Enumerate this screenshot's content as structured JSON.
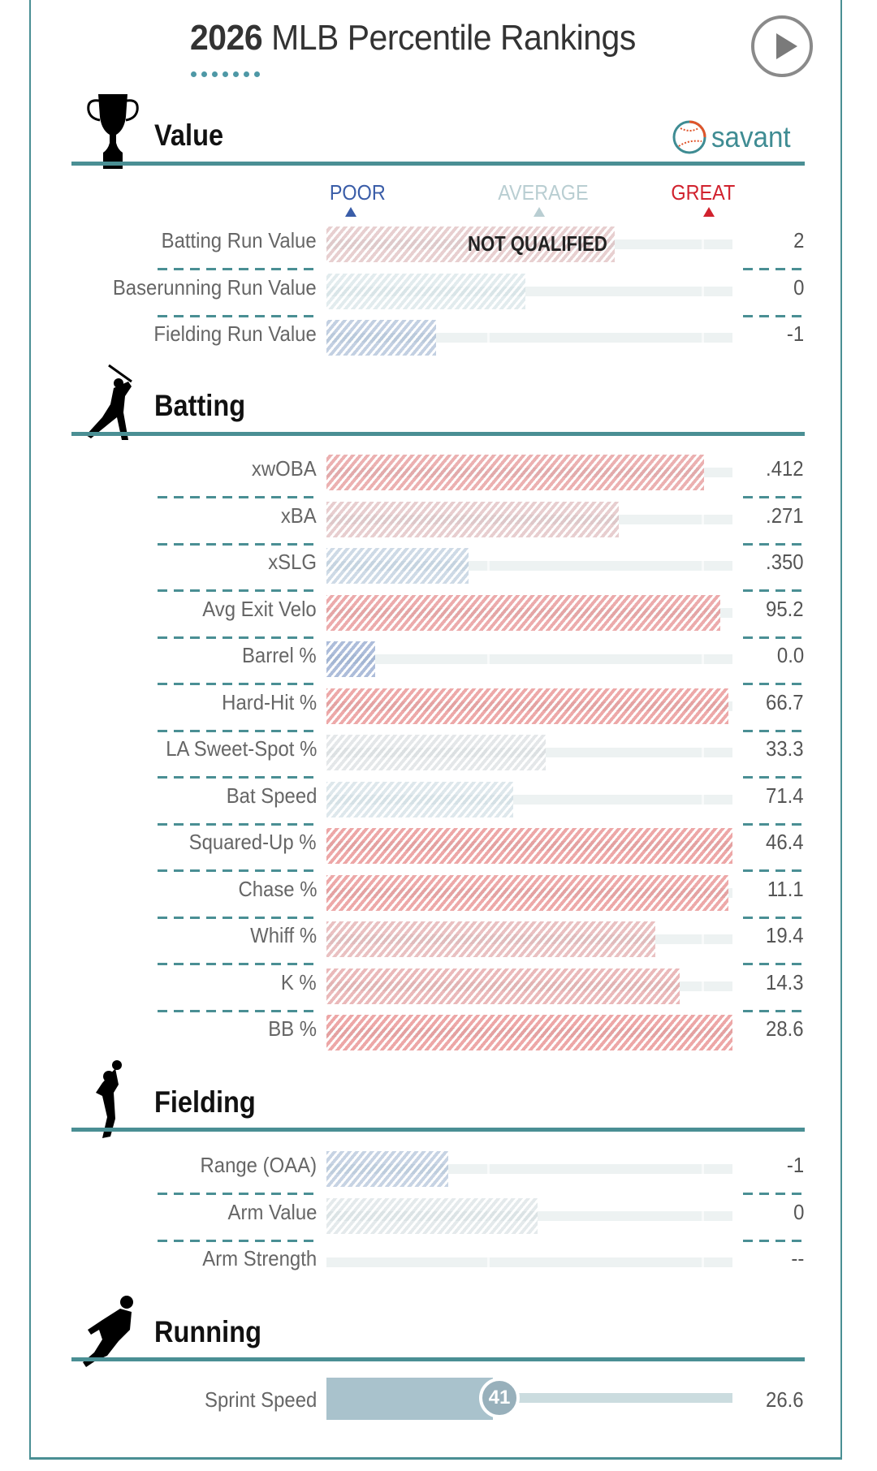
{
  "header": {
    "title_year": "2026",
    "title_rest": " MLB Percentile Rankings",
    "play_button": "play-icon"
  },
  "branding": {
    "text": "savant",
    "icon": "baseball-icon"
  },
  "legend": {
    "poor": "POOR",
    "average": "AVERAGE",
    "great": "GREAT",
    "poor_color": "#3a5da8",
    "average_color": "#b9ced2",
    "great_color": "#d1222e"
  },
  "sections": {
    "value": {
      "title": "Value",
      "icon": "trophy-icon",
      "rows": [
        {
          "label": "Batting Run Value",
          "value": "2",
          "percentile": 71,
          "note": "NOT QUALIFIED"
        },
        {
          "label": "Baserunning Run Value",
          "value": "0",
          "percentile": 49
        },
        {
          "label": "Fielding Run Value",
          "value": "-1",
          "percentile": 27
        }
      ]
    },
    "batting": {
      "title": "Batting",
      "icon": "batter-icon",
      "rows": [
        {
          "label": "xwOBA",
          "value": ".412",
          "percentile": 93
        },
        {
          "label": "xBA",
          "value": ".271",
          "percentile": 72
        },
        {
          "label": "xSLG",
          "value": ".350",
          "percentile": 35
        },
        {
          "label": "Avg Exit Velo",
          "value": "95.2",
          "percentile": 97
        },
        {
          "label": "Barrel %",
          "value": "0.0",
          "percentile": 12
        },
        {
          "label": "Hard-Hit %",
          "value": "66.7",
          "percentile": 99
        },
        {
          "label": "LA Sweet-Spot %",
          "value": "33.3",
          "percentile": 54
        },
        {
          "label": "Bat Speed",
          "value": "71.4",
          "percentile": 46
        },
        {
          "label": "Squared-Up %",
          "value": "46.4",
          "percentile": 100
        },
        {
          "label": "Chase %",
          "value": "11.1",
          "percentile": 99
        },
        {
          "label": "Whiff %",
          "value": "19.4",
          "percentile": 81
        },
        {
          "label": "K %",
          "value": "14.3",
          "percentile": 87
        },
        {
          "label": "BB %",
          "value": "28.6",
          "percentile": 100
        }
      ]
    },
    "fielding": {
      "title": "Fielding",
      "icon": "fielder-icon",
      "rows": [
        {
          "label": "Range (OAA)",
          "value": "-1",
          "percentile": 30
        },
        {
          "label": "Arm Value",
          "value": "0",
          "percentile": 52
        },
        {
          "label": "Arm Strength",
          "value": "--",
          "percentile": null
        }
      ]
    },
    "running": {
      "title": "Running",
      "icon": "runner-icon",
      "rows": [
        {
          "label": "Sprint Speed",
          "value": "26.6",
          "percentile": 41,
          "badge": "41"
        }
      ]
    }
  }
}
